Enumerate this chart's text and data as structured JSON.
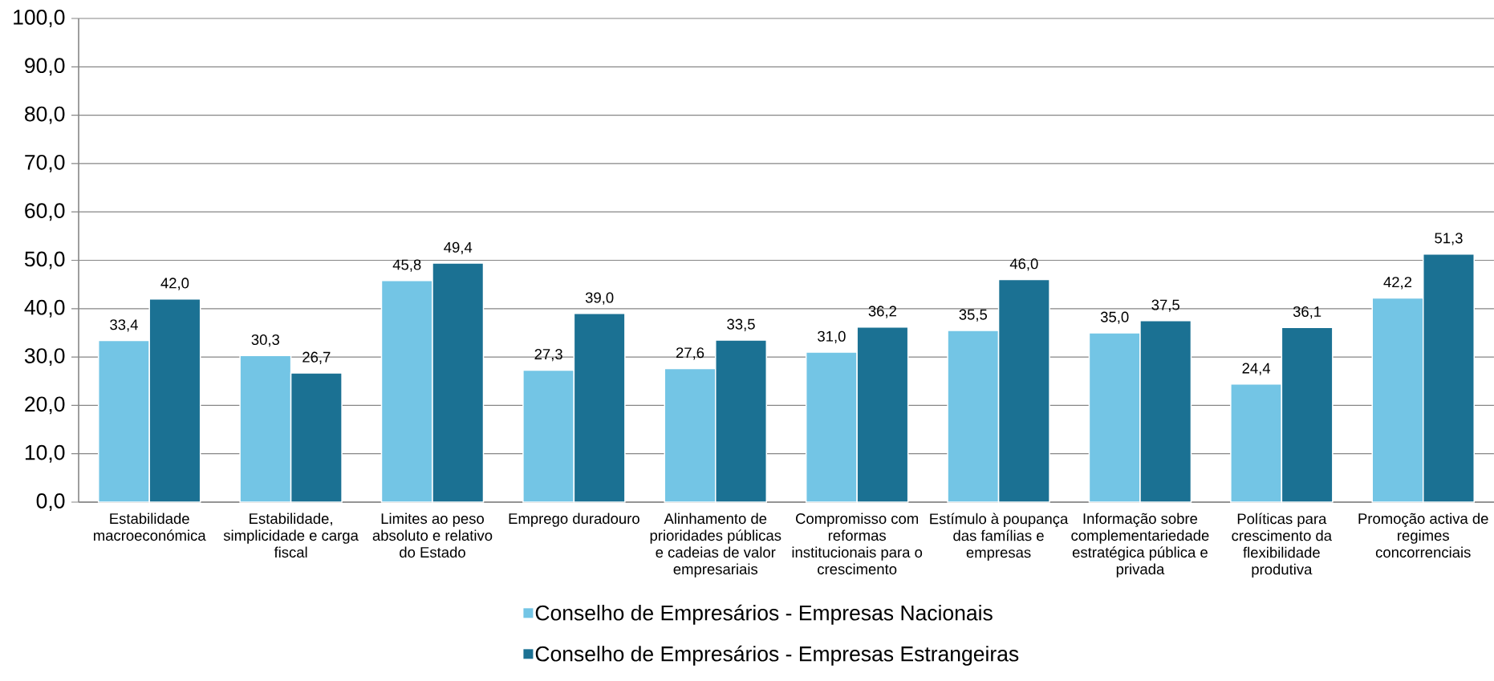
{
  "chart_data": {
    "type": "bar",
    "categories": [
      "Estabilidade macroeconómica",
      "Estabilidade, simplicidade e carga fiscal",
      "Limites ao peso absoluto e relativo do Estado",
      "Emprego duradouro",
      "Alinhamento de prioridades públicas e cadeias de valor empresariais",
      "Compromisso com reformas institucionais para o crescimento",
      "Estímulo à poupança das famílias e empresas",
      "Informação sobre complementariedade estratégica pública e privada",
      "Políticas para crescimento da flexibilidade produtiva",
      "Promoção activa de regimes concorrenciais"
    ],
    "series": [
      {
        "name": "Conselho de Empresários - Empresas Nacionais",
        "color": "#73c5e5",
        "values": [
          33.4,
          30.3,
          45.8,
          27.3,
          27.6,
          31.0,
          35.5,
          35.0,
          24.4,
          42.2
        ],
        "value_labels": [
          "33,4",
          "30,3",
          "45,8",
          "27,3",
          "27,6",
          "31,0",
          "35,5",
          "35,0",
          "24,4",
          "42,2"
        ]
      },
      {
        "name": "Conselho de Empresários - Empresas Estrangeiras",
        "color": "#1b7193",
        "values": [
          42.0,
          26.7,
          49.4,
          39.0,
          33.5,
          36.2,
          46.0,
          37.5,
          36.1,
          51.3
        ],
        "value_labels": [
          "42,0",
          "26,7",
          "49,4",
          "39,0",
          "33,5",
          "36,2",
          "46,0",
          "37,5",
          "36,1",
          "51,3"
        ]
      }
    ],
    "ylim": [
      0,
      100
    ],
    "yticks": [
      {
        "value": 0,
        "label": "0,0"
      },
      {
        "value": 10,
        "label": "10,0"
      },
      {
        "value": 20,
        "label": "20,0"
      },
      {
        "value": 30,
        "label": "30,0"
      },
      {
        "value": 40,
        "label": "40,0"
      },
      {
        "value": 50,
        "label": "50,0"
      },
      {
        "value": 60,
        "label": "60,0"
      },
      {
        "value": 70,
        "label": "70,0"
      },
      {
        "value": 80,
        "label": "80,0"
      },
      {
        "value": 90,
        "label": "90,0"
      },
      {
        "value": 100,
        "label": "100,0"
      }
    ],
    "grid": "y",
    "legend": "bottom"
  }
}
